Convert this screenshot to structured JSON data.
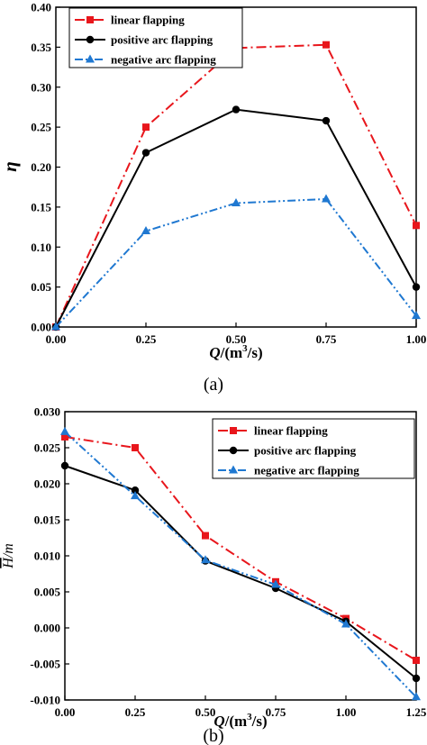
{
  "chart_data": [
    {
      "type": "line",
      "caption": "(a)",
      "xlabel": "Q/(m³/s)",
      "xlabel_parts": {
        "symbol": "Q",
        "unit_prefix": "/(m",
        "unit_sup": "3",
        "unit_suffix": "/s)"
      },
      "ylabel": "η",
      "xlim": [
        0,
        1
      ],
      "ylim": [
        0,
        0.4
      ],
      "xticks": [
        "0.00",
        "0.25",
        "0.50",
        "0.75",
        "1.00"
      ],
      "yticks": [
        "0.00",
        "0.05",
        "0.10",
        "0.15",
        "0.20",
        "0.25",
        "0.30",
        "0.35",
        "0.40"
      ],
      "grid": false,
      "legend_position": "top-left",
      "x": [
        0,
        0.25,
        0.5,
        0.75,
        1.0
      ],
      "series": [
        {
          "name": "linear flapping",
          "values": [
            0.0,
            0.25,
            0.349,
            0.353,
            0.127
          ],
          "color": "#e8161c",
          "marker": "square",
          "dash": "dash-dot"
        },
        {
          "name": "positive arc flapping",
          "values": [
            0.0,
            0.218,
            0.272,
            0.258,
            0.05
          ],
          "color": "#000000",
          "marker": "circle",
          "dash": "solid"
        },
        {
          "name": "negative arc flapping",
          "values": [
            0.0,
            0.12,
            0.155,
            0.16,
            0.014
          ],
          "color": "#1f78d1",
          "marker": "triangle",
          "dash": "dash-dot-dot"
        }
      ]
    },
    {
      "type": "line",
      "caption": "(b)",
      "xlabel": "Q/(m³/s)",
      "xlabel_parts": {
        "symbol": "Q",
        "unit_prefix": "/(m",
        "unit_sup": "3",
        "unit_suffix": "/s)"
      },
      "ylabel": "H̄/m",
      "ylabel_parts": {
        "symbol": "H",
        "suffix": "/m"
      },
      "xlim": [
        0,
        1.25
      ],
      "ylim": [
        -0.01,
        0.03
      ],
      "xticks": [
        "0.00",
        "0.25",
        "0.50",
        "0.75",
        "1.00",
        "1.25"
      ],
      "yticks": [
        "-0.010",
        "-0.005",
        "0.000",
        "0.005",
        "0.010",
        "0.015",
        "0.020",
        "0.025",
        "0.030"
      ],
      "grid": false,
      "legend_position": "top-right",
      "x": [
        0,
        0.25,
        0.5,
        0.75,
        1.0,
        1.25
      ],
      "series": [
        {
          "name": "linear flapping",
          "values": [
            0.0265,
            0.025,
            0.0128,
            0.0064,
            0.0013,
            -0.0045
          ],
          "color": "#e8161c",
          "marker": "square",
          "dash": "dash-dot"
        },
        {
          "name": "positive arc flapping",
          "values": [
            0.0225,
            0.0191,
            0.0093,
            0.0055,
            0.0009,
            -0.007
          ],
          "color": "#000000",
          "marker": "circle",
          "dash": "solid"
        },
        {
          "name": "negative arc flapping",
          "values": [
            0.0272,
            0.0183,
            0.0094,
            0.006,
            0.0005,
            -0.0096
          ],
          "color": "#1f78d1",
          "marker": "triangle",
          "dash": "dash-dot-dot"
        }
      ]
    }
  ]
}
